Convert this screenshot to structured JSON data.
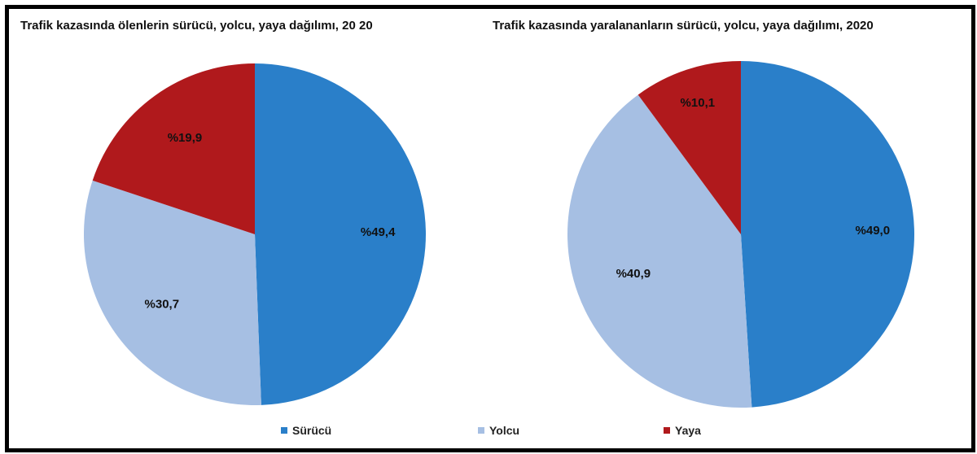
{
  "chart_data": [
    {
      "type": "pie",
      "title": "Trafik kazasında ölenlerin sürücü, yolcu, yaya dağılımı, 20 20",
      "categories": [
        "Sürücü",
        "Yolcu",
        "Yaya"
      ],
      "values": [
        49.4,
        30.7,
        19.9
      ],
      "labels": [
        "%49,4",
        "%30,7",
        "%19,9"
      ],
      "legend": "bottom"
    },
    {
      "type": "pie",
      "title": "Trafik kazasında yaralananların sürücü, yolcu, yaya dağılımı, 2020",
      "categories": [
        "Sürücü",
        "Yolcu",
        "Yaya"
      ],
      "values": [
        49.0,
        40.9,
        10.1
      ],
      "labels": [
        "%49,0",
        "%40,9",
        "%10,1"
      ],
      "legend": "bottom"
    }
  ],
  "colors": {
    "Sürücü": "#2a7fc9",
    "Yolcu": "#a6bfe3",
    "Yaya": "#b0191c"
  },
  "legend": {
    "items": [
      "Sürücü",
      "Yolcu",
      "Yaya"
    ]
  }
}
